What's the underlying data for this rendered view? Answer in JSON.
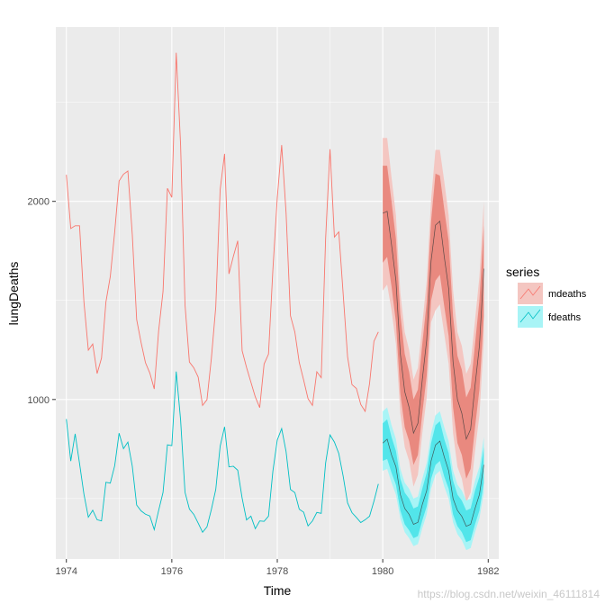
{
  "chart_data": {
    "type": "line",
    "xlabel": "Time",
    "ylabel": "lungDeaths",
    "xlim": [
      1973.8,
      1982.2
    ],
    "ylim": [
      195,
      2880
    ],
    "x_ticks": [
      1974,
      1976,
      1978,
      1980,
      1982
    ],
    "x_tick_labels": [
      "1974",
      "1976",
      "1978",
      "1980",
      "1982"
    ],
    "y_ticks": [
      1000,
      2000
    ],
    "y_tick_labels": [
      "1000",
      "2000"
    ],
    "y_minor_gridlines": [
      500,
      1500,
      2500
    ],
    "x_minor_gridlines": [
      1975,
      1977,
      1979,
      1981
    ],
    "grid": true,
    "legend": {
      "title": "series",
      "position": "right",
      "entries": [
        "mdeaths",
        "fdeaths"
      ]
    },
    "colors": {
      "mdeaths_line": "#F8766D",
      "mdeaths_band_80": "#E9897F",
      "mdeaths_band_95": "#F4C6C1",
      "fdeaths_line": "#00BFC4",
      "fdeaths_band_80": "#52E5EA",
      "fdeaths_band_95": "#A8F4F6",
      "panel": "#EBEBEB",
      "grid": "#FFFFFF"
    },
    "series": [
      {
        "name": "mdeaths",
        "x_start": 1974,
        "step": 0.08333,
        "values": [
          2134,
          1863,
          1877,
          1877,
          1492,
          1249,
          1280,
          1131,
          1209,
          1492,
          1621,
          1846,
          2103,
          2137,
          2153,
          1833,
          1403,
          1288,
          1186,
          1133,
          1053,
          1347,
          1545,
          2066,
          2020,
          2750,
          2283,
          1479,
          1189,
          1160,
          1113,
          970,
          999,
          1208,
          1467,
          2059,
          2240,
          1634,
          1722,
          1801,
          1246,
          1162,
          1087,
          1013,
          959,
          1179,
          1229,
          1655,
          2019,
          2284,
          1942,
          1423,
          1340,
          1187,
          1098,
          1004,
          970,
          1140,
          1110,
          1812,
          2263,
          1820,
          1846,
          1531,
          1215,
          1075,
          1056,
          975,
          940,
          1081,
          1294,
          1341
        ]
      },
      {
        "name": "fdeaths",
        "x_start": 1974,
        "step": 0.08333,
        "values": [
          901,
          689,
          827,
          677,
          522,
          406,
          441,
          393,
          387,
          582,
          578,
          666,
          830,
          752,
          785,
          664,
          467,
          438,
          421,
          412,
          343,
          440,
          531,
          771,
          767,
          1141,
          896,
          532,
          447,
          420,
          376,
          330,
          357,
          445,
          546,
          764,
          862,
          660,
          663,
          643,
          502,
          392,
          411,
          348,
          387,
          385,
          411,
          638,
          796,
          853,
          737,
          546,
          530,
          446,
          431,
          362,
          387,
          430,
          425,
          679,
          821,
          785,
          727,
          612,
          478,
          429,
          405,
          379,
          393,
          411,
          487,
          574
        ]
      }
    ],
    "forecasts": [
      {
        "series": "mdeaths",
        "x_start": 1980,
        "step": 0.08333,
        "mean": [
          1940,
          1950,
          1780,
          1600,
          1230,
          1040,
          960,
          830,
          880,
          1100,
          1300,
          1700,
          1880,
          1900,
          1720,
          1560,
          1190,
          1000,
          930,
          800,
          850,
          1070,
          1270,
          1660
        ],
        "lo80": [
          1690,
          1720,
          1570,
          1390,
          1030,
          860,
          790,
          670,
          720,
          930,
          1120,
          1500,
          1600,
          1630,
          1470,
          1320,
          960,
          780,
          720,
          600,
          650,
          860,
          1050,
          1420
        ],
        "hi80": [
          2180,
          2180,
          2000,
          1810,
          1430,
          1230,
          1140,
          1000,
          1050,
          1280,
          1490,
          1900,
          2140,
          2130,
          1960,
          1800,
          1420,
          1220,
          1150,
          1010,
          1060,
          1280,
          1500,
          1880
        ],
        "lo95": [
          1550,
          1580,
          1450,
          1280,
          930,
          760,
          690,
          560,
          620,
          830,
          1010,
          1390,
          1450,
          1480,
          1330,
          1180,
          830,
          660,
          600,
          480,
          530,
          740,
          920,
          1300
        ],
        "hi95": [
          2320,
          2320,
          2120,
          1930,
          1540,
          1340,
          1250,
          1100,
          1160,
          1380,
          1600,
          2010,
          2260,
          2260,
          2100,
          1930,
          1550,
          1340,
          1270,
          1130,
          1180,
          1400,
          1620,
          2000
        ]
      },
      {
        "series": "fdeaths",
        "x_start": 1980,
        "step": 0.08333,
        "mean": [
          780,
          800,
          720,
          660,
          520,
          450,
          420,
          370,
          380,
          470,
          540,
          690,
          770,
          790,
          710,
          640,
          500,
          440,
          410,
          360,
          370,
          450,
          520,
          670
        ],
        "lo80": [
          690,
          700,
          630,
          570,
          440,
          370,
          340,
          300,
          310,
          390,
          460,
          600,
          670,
          690,
          610,
          550,
          420,
          360,
          330,
          280,
          290,
          370,
          440,
          580
        ],
        "hi80": [
          880,
          900,
          810,
          740,
          600,
          530,
          500,
          450,
          460,
          550,
          630,
          780,
          870,
          890,
          800,
          730,
          590,
          520,
          490,
          440,
          450,
          540,
          610,
          760
        ],
        "lo95": [
          640,
          650,
          580,
          520,
          400,
          330,
          300,
          260,
          270,
          350,
          420,
          550,
          620,
          640,
          560,
          500,
          380,
          320,
          290,
          240,
          250,
          330,
          400,
          530
        ],
        "hi95": [
          940,
          960,
          870,
          800,
          650,
          580,
          550,
          500,
          510,
          600,
          680,
          830,
          920,
          940,
          860,
          790,
          640,
          570,
          540,
          490,
          500,
          590,
          660,
          810
        ]
      }
    ]
  },
  "watermark": "https://blog.csdn.net/weixin_46111814"
}
